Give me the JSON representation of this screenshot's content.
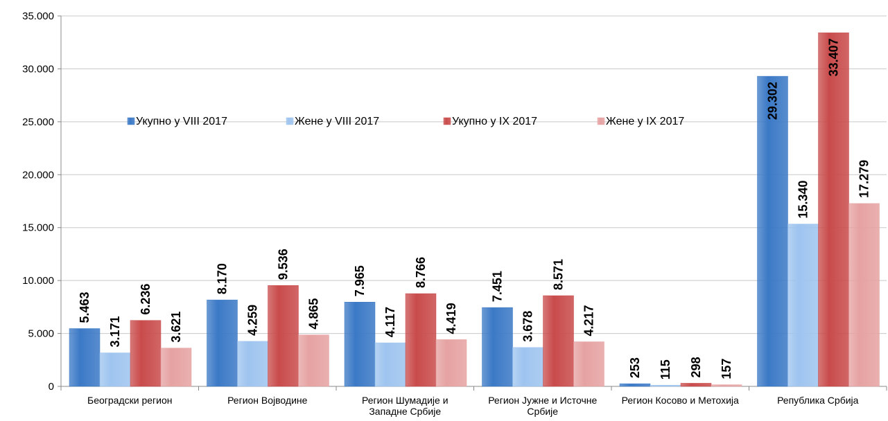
{
  "chart_data": {
    "type": "bar",
    "categories": [
      "Београдски регион",
      "Регион Војводине",
      "Регион Шумадије и Западне Србије",
      "Регион Јужне и Источне Србије",
      "Регион Косово и Метохија",
      "Република Србија"
    ],
    "series": [
      {
        "name": "Укупно у VIII 2017",
        "color": "#3b79c6",
        "values": [
          5463,
          8170,
          7965,
          7451,
          253,
          29302
        ],
        "value_labels": [
          "5.463",
          "8.170",
          "7.965",
          "7.451",
          "253",
          "29.302"
        ]
      },
      {
        "name": "Жене у VIII 2017",
        "color": "#9ec4ef",
        "values": [
          3171,
          4259,
          4117,
          3678,
          115,
          15340
        ],
        "value_labels": [
          "3.171",
          "4.259",
          "4.117",
          "3.678",
          "115",
          "15.340"
        ]
      },
      {
        "name": "Укупно у IX 2017",
        "color": "#c94b4b",
        "values": [
          6236,
          9536,
          8766,
          8571,
          298,
          33407
        ],
        "value_labels": [
          "6.236",
          "9.536",
          "8.766",
          "8.571",
          "298",
          "33.407"
        ]
      },
      {
        "name": "Жене у IX 2017",
        "color": "#e6a2a2",
        "values": [
          3621,
          4865,
          4419,
          4217,
          157,
          17279
        ],
        "value_labels": [
          "3.621",
          "4.865",
          "4.419",
          "4.217",
          "157",
          "17.279"
        ]
      }
    ],
    "ylim": [
      0,
      35000
    ],
    "yticks": [
      0,
      {
        "value": 5000,
        "label": "5.000"
      },
      {
        "value": 10000,
        "label": "10.000"
      },
      {
        "value": 15000,
        "label": "15.000"
      },
      {
        "value": 20000,
        "label": "20.000"
      },
      {
        "value": 25000,
        "label": "25.000"
      },
      {
        "value": 30000,
        "label": "30.000"
      },
      {
        "value": 35000,
        "label": "35.000"
      }
    ],
    "grid": true,
    "legend": "top"
  }
}
